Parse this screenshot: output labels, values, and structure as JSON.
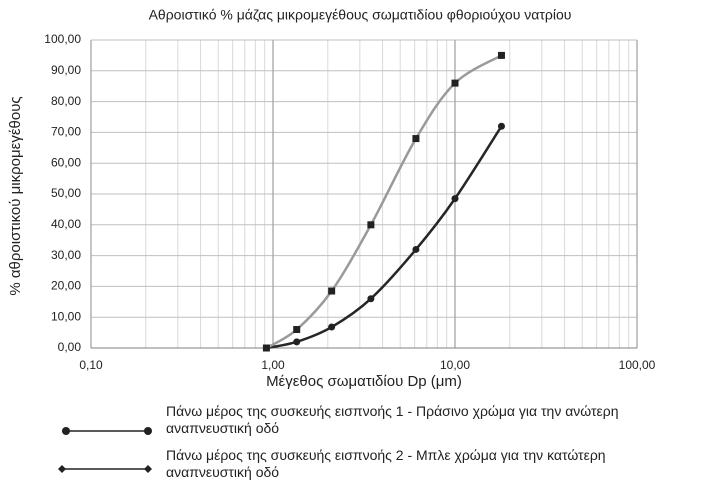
{
  "chart_data": {
    "type": "line",
    "title": "Αθροιστικό % μάζας μικρομεγέθους σωματιδίου φθοριούχου νατρίου",
    "x_label": "Μέγεθος σωματιδίου Dp (μm)",
    "y_label": "% αθροιστικού μικρομεγέθους",
    "x_scale": "log",
    "grid": true,
    "x": [
      0.92,
      1.35,
      2.1,
      3.45,
      6.1,
      10,
      18
    ],
    "series": [
      {
        "name": "Πάνω μέρος της συσκευής εισπνοής 1 - Πράσινο χρώμα για την ανώτερη αναπνευστική οδό",
        "color": "#262626",
        "marker": "circle",
        "values": [
          0,
          2,
          6.8,
          16,
          32,
          48.5,
          72
        ]
      },
      {
        "name": "Πάνω μέρος της συσκευής εισπνοής 2 - Μπλε χρώμα για την κατώτερη αναπνευστική οδό",
        "color": "#9a9a9a",
        "marker": "square",
        "values": [
          0,
          6,
          18.5,
          40,
          68,
          86,
          95
        ]
      }
    ],
    "xlim": [
      0.1,
      100
    ],
    "xticks": [
      {
        "value": 0.1,
        "label": "0,10"
      },
      {
        "value": 1,
        "label": "1,00"
      },
      {
        "value": 10,
        "label": "10,00"
      },
      {
        "value": 100,
        "label": "100,00"
      }
    ],
    "ylim": [
      0,
      100
    ],
    "yticks": [
      {
        "value": 0,
        "label": "0,00"
      },
      {
        "value": 10,
        "label": "10,00"
      },
      {
        "value": 20,
        "label": "20,00"
      },
      {
        "value": 30,
        "label": "30,00"
      },
      {
        "value": 40,
        "label": "40,00"
      },
      {
        "value": 50,
        "label": "50,00"
      },
      {
        "value": 60,
        "label": "60,00"
      },
      {
        "value": 70,
        "label": "70,00"
      },
      {
        "value": 80,
        "label": "80,00"
      },
      {
        "value": 90,
        "label": "90,00"
      },
      {
        "value": 100,
        "label": "100,00"
      }
    ]
  }
}
